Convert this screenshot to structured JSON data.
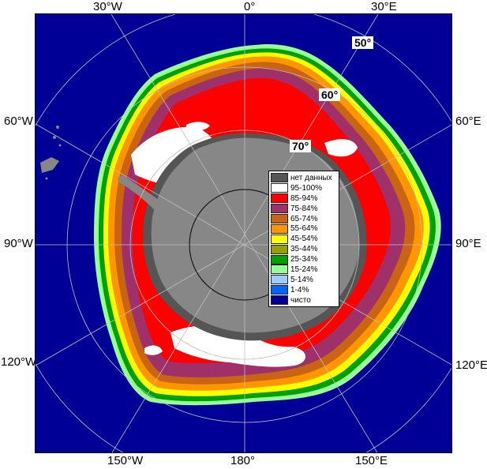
{
  "longitude_labels": {
    "top": [
      "30°W",
      "0°",
      "30°E"
    ],
    "left": [
      "60°W",
      "90°W",
      "120°W"
    ],
    "right": [
      "60°E",
      "90°E",
      "120°E"
    ],
    "bottom": [
      "150°W",
      "180°",
      "150°E"
    ]
  },
  "latitude_labels": [
    "50°",
    "60°",
    "70°"
  ],
  "legend": {
    "items": [
      {
        "label": "нет данных",
        "color": "#555555"
      },
      {
        "label": "95-100%",
        "color": "#ffffff"
      },
      {
        "label": "85-94%",
        "color": "#ff0000"
      },
      {
        "label": "75-84%",
        "color": "#a0306a"
      },
      {
        "label": "65-74%",
        "color": "#c86414"
      },
      {
        "label": "55-64%",
        "color": "#ff9600"
      },
      {
        "label": "45-54%",
        "color": "#ffff00"
      },
      {
        "label": "35-44%",
        "color": "#96a000"
      },
      {
        "label": "25-34%",
        "color": "#00a000"
      },
      {
        "label": "15-24%",
        "color": "#96ff96"
      },
      {
        "label": "5-14%",
        "color": "#9bcdff"
      },
      {
        "label": "1-4%",
        "color": "#0064ff"
      },
      {
        "label": "чисто",
        "color": "#000096"
      }
    ]
  },
  "colors": {
    "ocean": "#000096",
    "land": "#878787",
    "no_data": "#555555",
    "ice_edge_low": "#96ff96",
    "ice_pack": "#ff0000",
    "fast_ice": "#ffffff",
    "graticule": "#bfbfbf"
  }
}
